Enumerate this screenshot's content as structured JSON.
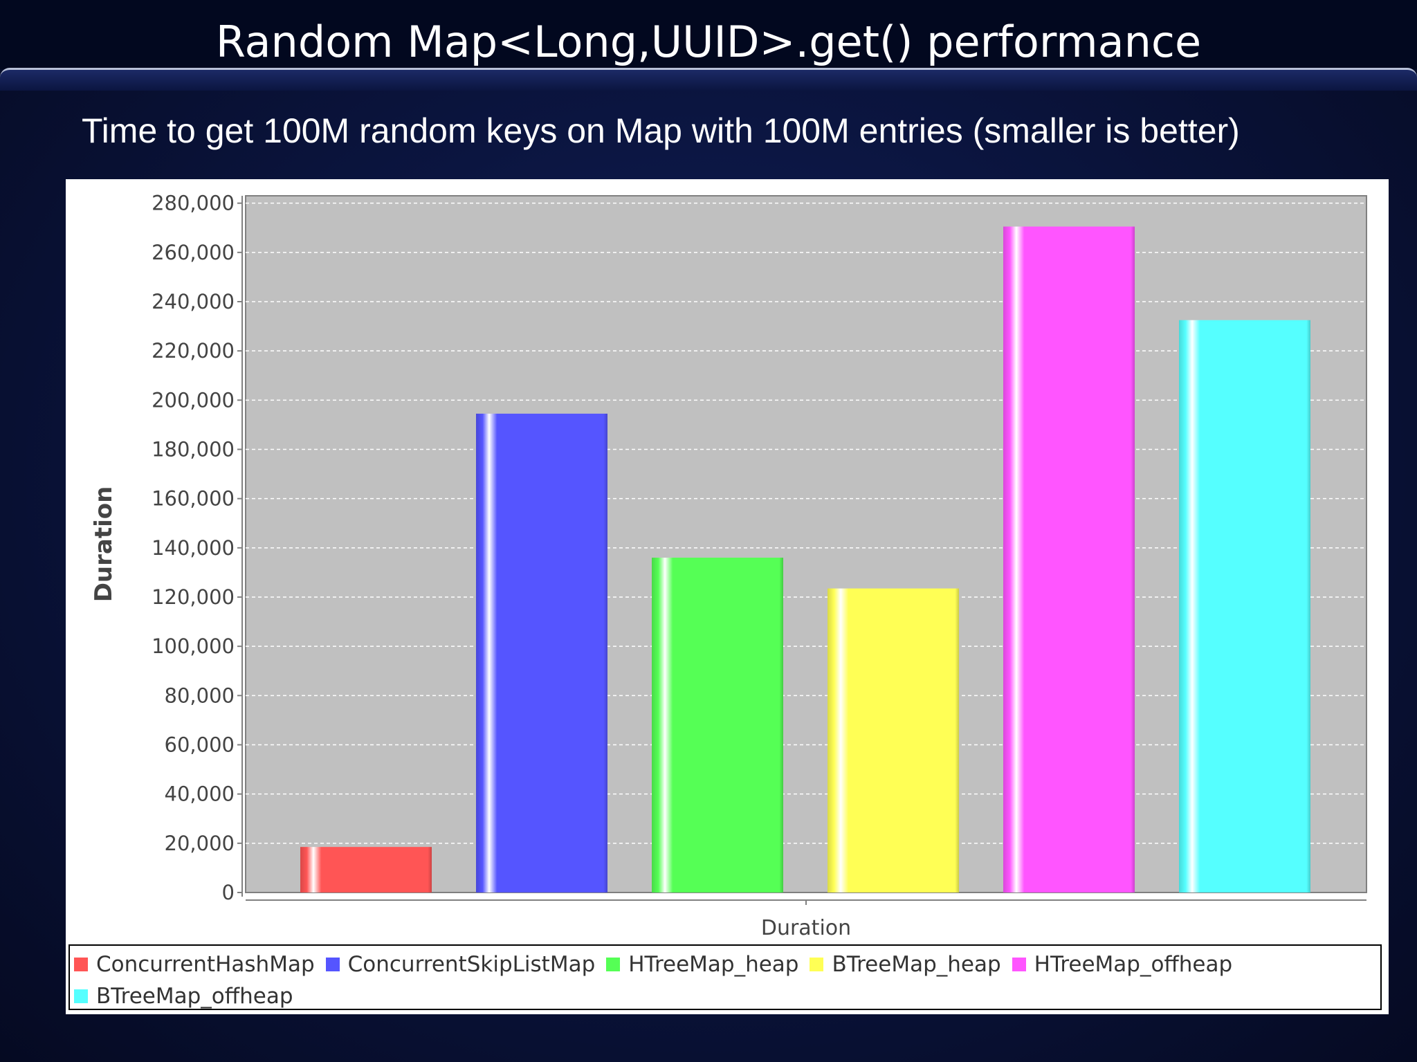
{
  "slide": {
    "title": "Random Map<Long,UUID>.get() performance",
    "subtitle": "Time to get 100M random keys on Map with 100M entries (smaller is better)"
  },
  "chart_data": {
    "type": "bar",
    "title": "",
    "xlabel": "Duration",
    "ylabel": "Duration",
    "categories": [
      "Duration"
    ],
    "series": [
      {
        "name": "ConcurrentHashMap",
        "values": [
          18500
        ],
        "color": "#ff5555"
      },
      {
        "name": "ConcurrentSkipListMap",
        "values": [
          194500
        ],
        "color": "#5555ff"
      },
      {
        "name": "HTreeMap_heap",
        "values": [
          136000
        ],
        "color": "#55ff55"
      },
      {
        "name": "BTreeMap_heap",
        "values": [
          123500
        ],
        "color": "#ffff55"
      },
      {
        "name": "HTreeMap_offheap",
        "values": [
          270500
        ],
        "color": "#ff55ff"
      },
      {
        "name": "BTreeMap_offheap",
        "values": [
          232500
        ],
        "color": "#55ffff"
      }
    ],
    "ylim": [
      0,
      283000
    ],
    "yticks": [
      "0",
      "20,000",
      "40,000",
      "60,000",
      "80,000",
      "100,000",
      "120,000",
      "140,000",
      "160,000",
      "180,000",
      "200,000",
      "220,000",
      "240,000",
      "260,000",
      "280,000"
    ],
    "grid": true,
    "plot_background": "#c0c0c0",
    "legend_position": "bottom"
  }
}
